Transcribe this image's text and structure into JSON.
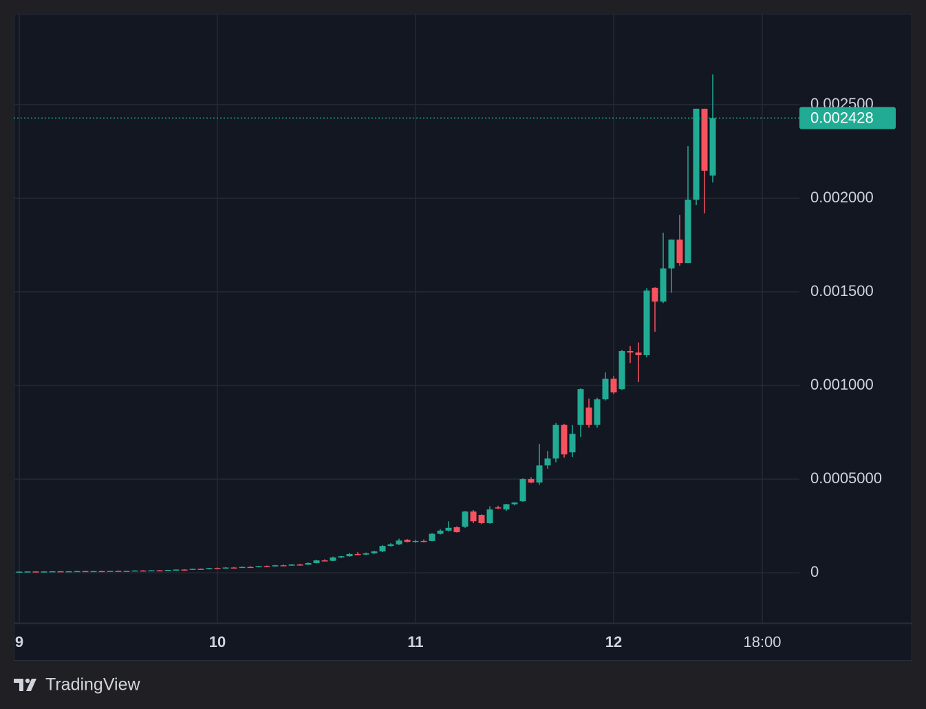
{
  "chart_data": {
    "type": "candlestick",
    "up_color": "#22ab94",
    "down_color": "#f7525f",
    "grid": true,
    "x": [
      0,
      1,
      2,
      3,
      4,
      5,
      6,
      7,
      8,
      9,
      10,
      11,
      12,
      13,
      14,
      15,
      16,
      17,
      18,
      19,
      20,
      21,
      22,
      23,
      24,
      25,
      26,
      27,
      28,
      29,
      30,
      31,
      32,
      33,
      34,
      35,
      36,
      37,
      38,
      39,
      40,
      41,
      42,
      43,
      44,
      45,
      46,
      47,
      48,
      49,
      50,
      51,
      52,
      53,
      54,
      55,
      56,
      57,
      58,
      59,
      60,
      61,
      62,
      63,
      64,
      65,
      66,
      67,
      68,
      69,
      70,
      71,
      72,
      73,
      74,
      75,
      76,
      77,
      78,
      79,
      80,
      81,
      82,
      83,
      84
    ],
    "open": [
      5e-06,
      6e-06,
      7e-06,
      6e-06,
      7e-06,
      8e-06,
      7e-06,
      8e-06,
      9e-06,
      8e-06,
      9e-06,
      8e-06,
      1e-05,
      9e-06,
      1e-05,
      1.2e-05,
      1.1e-05,
      1.3e-05,
      1.2e-05,
      1.5e-05,
      1.7e-05,
      1.6e-05,
      2.1e-05,
      2e-05,
      2.5e-05,
      2.3e-05,
      2.8e-05,
      2.7e-05,
      3.1e-05,
      3e-05,
      3.5e-05,
      3.4e-05,
      4e-05,
      3.8e-05,
      4.4e-05,
      4.3e-05,
      5.2e-05,
      6.6e-05,
      6.4e-05,
      8.2e-05,
      8.8e-05,
      0.0001,
      9.7e-05,
      0.000104,
      0.000114,
      0.000143,
      0.000152,
      0.000176,
      0.000165,
      0.00017,
      0.00017,
      0.000208,
      0.000225,
      0.000243,
      0.000246,
      0.000327,
      0.000309,
      0.000265,
      0.000349,
      0.000338,
      0.000366,
      0.000382,
      0.0005,
      0.000482,
      0.000573,
      0.00061,
      0.00079,
      0.000643,
      0.00079,
      0.000882,
      0.00079,
      0.000926,
      0.001036,
      0.000981,
      0.001184,
      0.001176,
      0.001162,
      0.001522,
      0.001448,
      0.001625,
      0.001779,
      0.001654,
      0.001992,
      0.002478,
      0.002121
    ],
    "high": [
      7e-06,
      7e-06,
      8e-06,
      8e-06,
      9e-06,
      9e-06,
      9e-06,
      1e-05,
      1e-05,
      1e-05,
      1.1e-05,
      1e-05,
      1.2e-05,
      1.1e-05,
      1.3e-05,
      1.4e-05,
      1.4e-05,
      1.5e-05,
      1.6e-05,
      1.8e-05,
      1.9e-05,
      2.2e-05,
      2.3e-05,
      2.6e-05,
      2.8e-05,
      3e-05,
      3.1e-05,
      3.3e-05,
      3.5e-05,
      3.6e-05,
      3.9e-05,
      4.2e-05,
      4.4e-05,
      4.6e-05,
      4.8e-05,
      5.5e-05,
      7e-05,
      7.2e-05,
      8.6e-05,
      9e-05,
      0.000105,
      0.00011,
      0.000108,
      0.000118,
      0.000148,
      0.000158,
      0.000182,
      0.00018,
      0.000176,
      0.000178,
      0.000212,
      0.000232,
      0.000275,
      0.000248,
      0.00033,
      0.000335,
      0.000312,
      0.000355,
      0.000358,
      0.000368,
      0.000378,
      0.000505,
      0.00051,
      0.000687,
      0.00065,
      0.0008,
      0.000795,
      0.00079,
      0.000985,
      0.00093,
      0.000935,
      0.00107,
      0.00105,
      0.00119,
      0.00121,
      0.00123,
      0.00152,
      0.001525,
      0.001816,
      0.00178,
      0.001911,
      0.002279,
      0.002478,
      0.002478,
      0.002661
    ],
    "low": [
      4e-06,
      5e-06,
      6e-06,
      5e-06,
      6e-06,
      7e-06,
      6e-06,
      7e-06,
      8e-06,
      7e-06,
      8e-06,
      7e-06,
      9e-06,
      8e-06,
      9e-06,
      1.1e-05,
      1e-05,
      1.2e-05,
      1.1e-05,
      1.4e-05,
      1.5e-05,
      1.5e-05,
      1.9e-05,
      1.9e-05,
      2.2e-05,
      2.2e-05,
      2.6e-05,
      2.6e-05,
      2.9e-05,
      2.9e-05,
      3.3e-05,
      3.3e-05,
      3.7e-05,
      3.7e-05,
      4.1e-05,
      4.2e-05,
      5e-05,
      6.2e-05,
      6.2e-05,
      7.8e-05,
      8.6e-05,
      9.6e-05,
      9.5e-05,
      0.0001,
      0.00011,
      0.00014,
      0.000148,
      0.000162,
      0.00016,
      0.000162,
      0.000168,
      0.000204,
      0.00022,
      0.000215,
      0.00024,
      0.000265,
      0.00026,
      0.000262,
      0.00034,
      0.00033,
      0.00036,
      0.000378,
      0.000478,
      0.00047,
      0.000555,
      0.00059,
      0.000615,
      0.000618,
      0.000725,
      0.000775,
      0.000775,
      0.00092,
      0.000955,
      0.000975,
      0.00112,
      0.001018,
      0.00115,
      0.001287,
      0.00144,
      0.001496,
      0.00164,
      0.001654,
      0.001963,
      0.001919,
      0.002084
    ],
    "close": [
      6e-06,
      7e-06,
      6e-06,
      7e-06,
      8e-06,
      7e-06,
      8e-06,
      9e-06,
      8e-06,
      9e-06,
      8e-06,
      1e-05,
      9e-06,
      1e-05,
      1.2e-05,
      1.1e-05,
      1.3e-05,
      1.2e-05,
      1.5e-05,
      1.7e-05,
      1.6e-05,
      2.1e-05,
      2e-05,
      2.5e-05,
      2.3e-05,
      2.8e-05,
      2.7e-05,
      3.1e-05,
      3e-05,
      3.5e-05,
      3.4e-05,
      4e-05,
      3.8e-05,
      4.4e-05,
      4.3e-05,
      5.2e-05,
      6.6e-05,
      6.4e-05,
      8.2e-05,
      8.8e-05,
      0.0001,
      9.7e-05,
      0.000104,
      0.000114,
      0.000143,
      0.000152,
      0.000172,
      0.000165,
      0.00017,
      0.000168,
      0.000208,
      0.000225,
      0.00024,
      0.000217,
      0.000327,
      0.000275,
      0.000265,
      0.000338,
      0.000345,
      0.000366,
      0.000375,
      0.0005,
      0.000482,
      0.000573,
      0.00061,
      0.00079,
      0.000632,
      0.000742,
      0.000981,
      0.00079,
      0.000926,
      0.001036,
      0.000963,
      0.001184,
      0.001176,
      0.001162,
      0.001507,
      0.001448,
      0.001625,
      0.001779,
      0.001654,
      0.001992,
      0.002478,
      0.002147,
      0.002428
    ],
    "last_price": 0.002428,
    "xlim": [
      -0.67,
      94.5
    ],
    "xticks": [
      {
        "value": 0,
        "label": "9"
      },
      {
        "value": 24,
        "label": "10"
      },
      {
        "value": 48,
        "label": "11"
      },
      {
        "value": 72,
        "label": "12"
      },
      {
        "value": 90,
        "label": "18:00"
      }
    ],
    "ylim": [
      -0.000268,
      0.002985
    ],
    "yticks": [
      0,
      {
        "value": 0.0005,
        "label": "0.0005000"
      },
      {
        "value": 0.001,
        "label": "0.001000"
      },
      {
        "value": 0.0015,
        "label": "0.001500"
      },
      {
        "value": 0.002,
        "label": "0.002000"
      },
      {
        "value": 0.0025,
        "label": "0.002500"
      }
    ],
    "brand": "TradingView"
  }
}
